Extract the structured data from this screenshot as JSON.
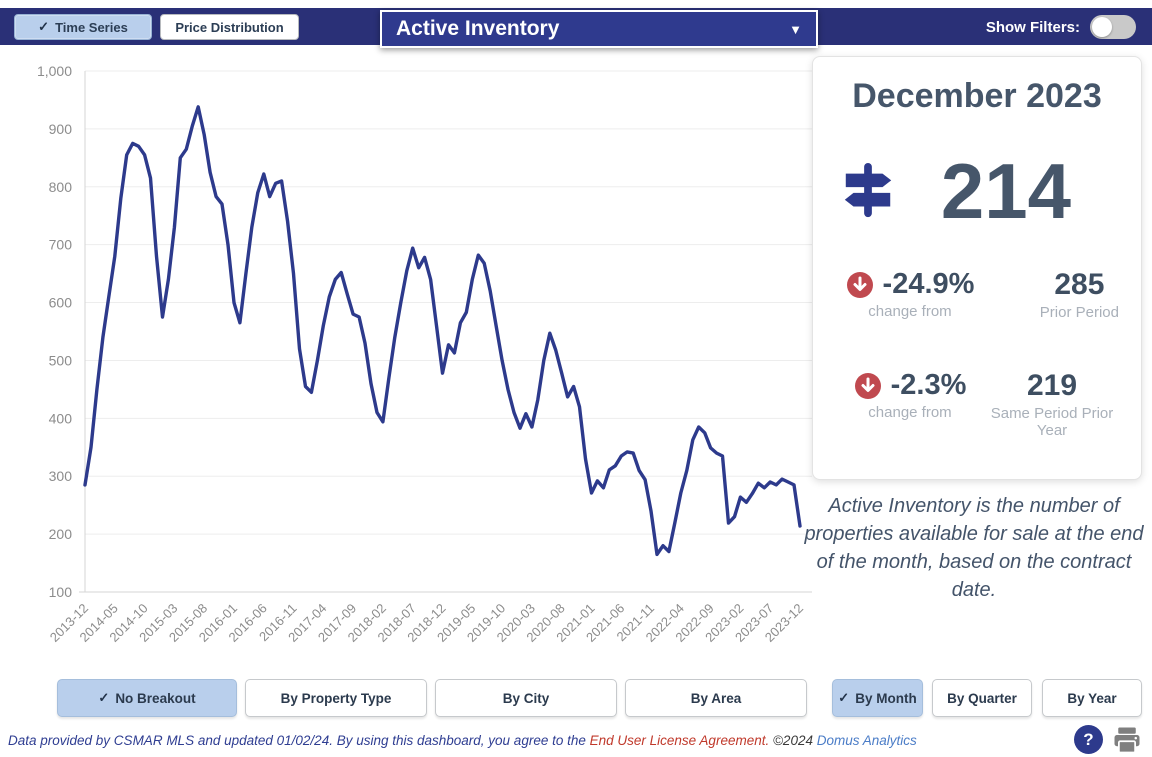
{
  "topbar": {
    "time_series_label": "Time Series",
    "price_distribution_label": "Price Distribution",
    "metric_dropdown_value": "Active Inventory",
    "show_filters_label": "Show Filters:"
  },
  "icons": {
    "check_glyph": "✓",
    "caret_glyph": "▼",
    "question_glyph": "?"
  },
  "chart_data": {
    "type": "line",
    "title": "Active Inventory time series",
    "line_color": "#2d3a8c",
    "grid": true,
    "legend": "none",
    "ylim": [
      100,
      1000
    ],
    "y_tick_labels": [
      "1,000",
      "900",
      "800",
      "700",
      "600",
      "500",
      "400",
      "300",
      "200",
      "100"
    ],
    "x_tick_interval": 5,
    "x_tick_labels": [
      "2013-12",
      "2014-05",
      "2014-10",
      "2015-03",
      "2015-08",
      "2016-01",
      "2016-06",
      "2016-11",
      "2017-04",
      "2017-09",
      "2018-02",
      "2018-07",
      "2018-12",
      "2019-05",
      "2019-10",
      "2020-03",
      "2020-08",
      "2021-01",
      "2021-06",
      "2021-11",
      "2022-04",
      "2022-09",
      "2023-02",
      "2023-07",
      "2023-12"
    ],
    "x": [
      "2013-12",
      "2014-01",
      "2014-02",
      "2014-03",
      "2014-04",
      "2014-05",
      "2014-06",
      "2014-07",
      "2014-08",
      "2014-09",
      "2014-10",
      "2014-11",
      "2014-12",
      "2015-01",
      "2015-02",
      "2015-03",
      "2015-04",
      "2015-05",
      "2015-06",
      "2015-07",
      "2015-08",
      "2015-09",
      "2015-10",
      "2015-11",
      "2015-12",
      "2016-01",
      "2016-02",
      "2016-03",
      "2016-04",
      "2016-05",
      "2016-06",
      "2016-07",
      "2016-08",
      "2016-09",
      "2016-10",
      "2016-11",
      "2016-12",
      "2017-01",
      "2017-02",
      "2017-03",
      "2017-04",
      "2017-05",
      "2017-06",
      "2017-07",
      "2017-08",
      "2017-09",
      "2017-10",
      "2017-11",
      "2017-12",
      "2018-01",
      "2018-02",
      "2018-03",
      "2018-04",
      "2018-05",
      "2018-06",
      "2018-07",
      "2018-08",
      "2018-09",
      "2018-10",
      "2018-11",
      "2018-12",
      "2019-01",
      "2019-02",
      "2019-03",
      "2019-04",
      "2019-05",
      "2019-06",
      "2019-07",
      "2019-08",
      "2019-09",
      "2019-10",
      "2019-11",
      "2019-12",
      "2020-01",
      "2020-02",
      "2020-03",
      "2020-04",
      "2020-05",
      "2020-06",
      "2020-07",
      "2020-08",
      "2020-09",
      "2020-10",
      "2020-11",
      "2020-12",
      "2021-01",
      "2021-02",
      "2021-03",
      "2021-04",
      "2021-05",
      "2021-06",
      "2021-07",
      "2021-08",
      "2021-09",
      "2021-10",
      "2021-11",
      "2021-12",
      "2022-01",
      "2022-02",
      "2022-03",
      "2022-04",
      "2022-05",
      "2022-06",
      "2022-07",
      "2022-08",
      "2022-09",
      "2022-10",
      "2022-11",
      "2022-12",
      "2023-01",
      "2023-02",
      "2023-03",
      "2023-04",
      "2023-05",
      "2023-06",
      "2023-07",
      "2023-08",
      "2023-09",
      "2023-10",
      "2023-11",
      "2023-12"
    ],
    "values": [
      285,
      350,
      450,
      540,
      610,
      680,
      780,
      855,
      875,
      870,
      855,
      815,
      680,
      575,
      640,
      730,
      850,
      865,
      905,
      938,
      890,
      825,
      783,
      770,
      700,
      600,
      565,
      650,
      730,
      790,
      822,
      783,
      806,
      810,
      740,
      650,
      520,
      455,
      445,
      500,
      560,
      610,
      640,
      652,
      615,
      580,
      575,
      530,
      460,
      410,
      394,
      470,
      540,
      600,
      655,
      694,
      660,
      678,
      640,
      560,
      478,
      527,
      513,
      565,
      583,
      640,
      682,
      668,
      620,
      560,
      500,
      450,
      410,
      383,
      408,
      385,
      432,
      500,
      547,
      518,
      478,
      437,
      455,
      420,
      330,
      271,
      292,
      280,
      311,
      318,
      335,
      342,
      340,
      310,
      294,
      240,
      165,
      180,
      170,
      220,
      271,
      310,
      363,
      385,
      375,
      349,
      340,
      335,
      219,
      230,
      264,
      255,
      270,
      288,
      280,
      290,
      285,
      295,
      290,
      285,
      214
    ]
  },
  "summary_card": {
    "title": "December 2023",
    "value": "214",
    "stats": [
      {
        "pct": "-24.9%",
        "pct_caption": "change from",
        "compare_value": "285",
        "compare_caption": "Prior Period"
      },
      {
        "pct": "-2.3%",
        "pct_caption": "change from",
        "compare_value": "219",
        "compare_caption": "Same Period Prior Year"
      }
    ]
  },
  "description": "Active Inventory is the number of properties available for sale at the end of the month, based on the contract date.",
  "breakout_buttons": [
    {
      "label": "No Breakout",
      "selected": true
    },
    {
      "label": "By Property Type",
      "selected": false
    },
    {
      "label": "By City",
      "selected": false
    },
    {
      "label": "By Area",
      "selected": false
    }
  ],
  "period_buttons": [
    {
      "label": "By Month",
      "selected": true
    },
    {
      "label": "By Quarter",
      "selected": false
    },
    {
      "label": "By Year",
      "selected": false
    }
  ],
  "footer": {
    "text_main": "Data provided by CSMAR MLS and updated 01/02/24.  By using this dashboard, you agree to the ",
    "license_link": "End User License Agreement.",
    "spacer": "  ",
    "copyright": "©2024 ",
    "brand_link": "Domus Analytics"
  },
  "colors": {
    "topbar_navy": "#2a3077",
    "accent_navy": "#2d3a8c",
    "selected_button_blue": "#b9cfec",
    "negative_red": "#c0494f",
    "headline_slate": "#46566a"
  }
}
